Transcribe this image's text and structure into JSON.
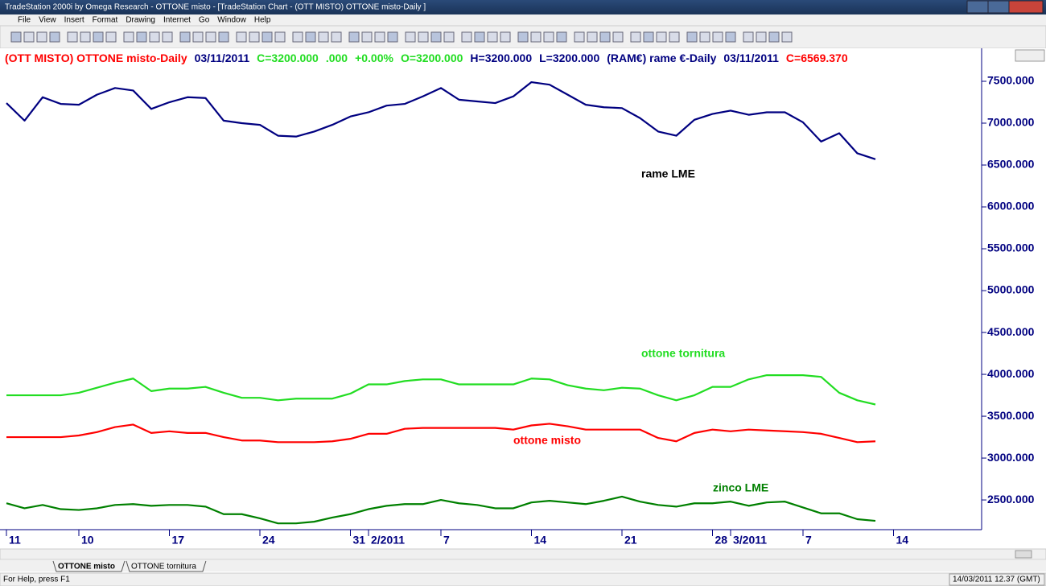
{
  "window": {
    "title": "TradeStation 2000i by Omega Research - OTTONE misto - [TradeStation Chart - (OTT MISTO) OTTONE misto-Daily ]",
    "menu": [
      "File",
      "View",
      "Insert",
      "Format",
      "Drawing",
      "Internet",
      "Go",
      "Window",
      "Help"
    ],
    "tabs": [
      "OTTONE misto",
      "OTTONE tornitura"
    ],
    "status": "For Help, press F1",
    "clock": "14/03/2011 12.37 (GMT)"
  },
  "chart_data": {
    "type": "line",
    "header": [
      {
        "text": "(OTT MISTO) OTTONE misto-Daily",
        "color": "#ff0000"
      },
      {
        "text": "03/11/2011",
        "color": "#000080"
      },
      {
        "text": "C=3200.000",
        "color": "#22dd22"
      },
      {
        "text": ".000",
        "color": "#22dd22"
      },
      {
        "text": "+0.00%",
        "color": "#22dd22"
      },
      {
        "text": "O=3200.000",
        "color": "#22dd22"
      },
      {
        "text": "H=3200.000",
        "color": "#000080"
      },
      {
        "text": "L=3200.000",
        "color": "#000080"
      },
      {
        "text": "(RAM€) rame €-Daily",
        "color": "#000080"
      },
      {
        "text": "03/11/2011",
        "color": "#000080"
      },
      {
        "text": "C=6569.370",
        "color": "#ff0000"
      }
    ],
    "categories": [
      "11",
      null,
      null,
      null,
      "10",
      null,
      null,
      null,
      null,
      "17",
      null,
      null,
      null,
      null,
      "24",
      null,
      null,
      null,
      null,
      "31",
      "2/2011",
      null,
      null,
      null,
      "7",
      null,
      null,
      null,
      null,
      "14",
      null,
      null,
      null,
      null,
      "21",
      null,
      null,
      null,
      null,
      "28",
      "3/2011",
      null,
      null,
      null,
      "7",
      null,
      null,
      null,
      null,
      "14"
    ],
    "series": [
      {
        "name": "rame LME",
        "color": "#000080",
        "label_color": "#000000",
        "values": [
          7240,
          7030,
          7310,
          7230,
          7220,
          7340,
          7420,
          7390,
          7170,
          7250,
          7310,
          7300,
          7030,
          7000,
          6980,
          6850,
          6840,
          6900,
          6980,
          7080,
          7130,
          7210,
          7230,
          7320,
          7420,
          7280,
          7260,
          7240,
          7320,
          7490,
          7460,
          7340,
          7220,
          7190,
          7180,
          7060,
          6900,
          6850,
          7040,
          7110,
          7150,
          7100,
          7130,
          7130,
          7010,
          6780,
          6880,
          6640,
          6569,
          null
        ]
      },
      {
        "name": "ottone tornitura",
        "color": "#22dd22",
        "label_color": "#22dd22",
        "values": [
          3750,
          3750,
          3750,
          3750,
          3780,
          3840,
          3900,
          3950,
          3800,
          3830,
          3830,
          3850,
          3780,
          3720,
          3720,
          3690,
          3710,
          3710,
          3710,
          3770,
          3880,
          3880,
          3920,
          3940,
          3940,
          3880,
          3880,
          3880,
          3880,
          3950,
          3940,
          3870,
          3830,
          3810,
          3840,
          3830,
          3750,
          3690,
          3750,
          3850,
          3850,
          3940,
          3990,
          3990,
          3990,
          3970,
          3780,
          3690,
          3640,
          null
        ]
      },
      {
        "name": "ottone misto",
        "color": "#ff0000",
        "label_color": "#ff0000",
        "values": [
          3250,
          3250,
          3250,
          3250,
          3270,
          3310,
          3370,
          3400,
          3300,
          3320,
          3300,
          3300,
          3250,
          3210,
          3210,
          3190,
          3190,
          3190,
          3200,
          3230,
          3290,
          3290,
          3350,
          3360,
          3360,
          3360,
          3360,
          3360,
          3340,
          3390,
          3410,
          3380,
          3340,
          3340,
          3340,
          3340,
          3240,
          3200,
          3300,
          3340,
          3320,
          3340,
          3330,
          3320,
          3310,
          3290,
          3240,
          3190,
          3200,
          null
        ]
      },
      {
        "name": "zinco LME",
        "color": "#008000",
        "label_color": "#008000",
        "values": [
          2460,
          2400,
          2440,
          2390,
          2380,
          2400,
          2440,
          2450,
          2430,
          2440,
          2440,
          2420,
          2330,
          2330,
          2280,
          2220,
          2220,
          2240,
          2290,
          2330,
          2390,
          2430,
          2450,
          2450,
          2500,
          2460,
          2440,
          2400,
          2400,
          2470,
          2490,
          2470,
          2450,
          2490,
          2540,
          2480,
          2440,
          2420,
          2460,
          2460,
          2480,
          2430,
          2470,
          2480,
          2410,
          2340,
          2340,
          2270,
          2250,
          null
        ]
      }
    ],
    "ylim": [
      2145,
      7875
    ],
    "yticks": [
      {
        "value": 2500,
        "label": "2500.000"
      },
      {
        "value": 3000,
        "label": "3000.000"
      },
      {
        "value": 3500,
        "label": "3500.000"
      },
      {
        "value": 4000,
        "label": "4000.000"
      },
      {
        "value": 4500,
        "label": "4500.000"
      },
      {
        "value": 5000,
        "label": "5000.000"
      },
      {
        "value": 5500,
        "label": "5500.000"
      },
      {
        "value": 6000,
        "label": "6000.000"
      },
      {
        "value": 6500,
        "label": "6500.000"
      },
      {
        "value": 7000,
        "label": "7000.000"
      },
      {
        "value": 7500,
        "label": "7500.000"
      }
    ]
  }
}
